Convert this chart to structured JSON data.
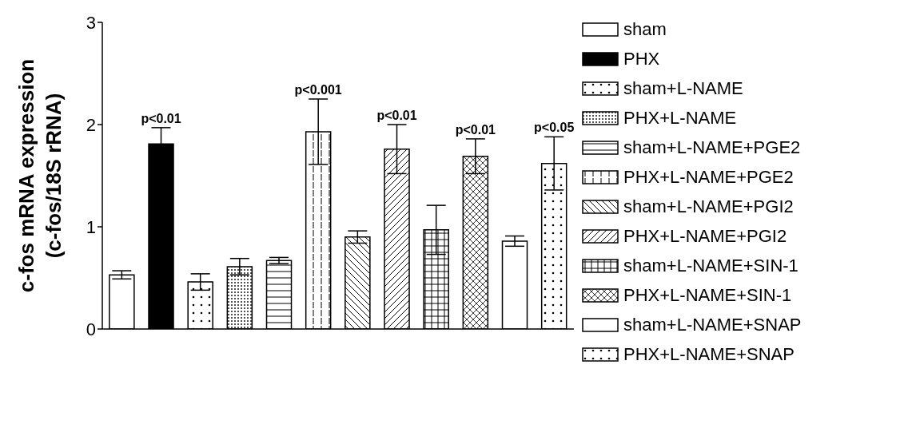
{
  "chart_data": {
    "type": "bar",
    "ylabel": "c-fos mRNA expression\n(c-fos/18S rRNA)",
    "categories": [
      null,
      null,
      null,
      null,
      null,
      null,
      null,
      null,
      null,
      null,
      null,
      null
    ],
    "series": [
      {
        "name": "sham",
        "color": "#000000",
        "values": [
          0.53,
          null,
          null,
          null,
          null,
          null,
          null,
          null,
          null,
          null,
          null,
          null
        ],
        "errors": [
          0.04,
          null,
          null,
          null,
          null,
          null,
          null,
          null,
          null,
          null,
          null,
          null
        ]
      },
      {
        "name": "PHX",
        "color": "#000000",
        "values": [
          null,
          1.81,
          null,
          null,
          null,
          null,
          null,
          null,
          null,
          null,
          null,
          null
        ],
        "errors": [
          null,
          0.16,
          null,
          null,
          null,
          null,
          null,
          null,
          null,
          null,
          null,
          null
        ],
        "value_labels": [
          null,
          "p<0.01",
          null,
          null,
          null,
          null,
          null,
          null,
          null,
          null,
          null,
          null
        ]
      },
      {
        "name": "sham+L-NAME",
        "color": "#000000",
        "values": [
          null,
          null,
          0.46,
          null,
          null,
          null,
          null,
          null,
          null,
          null,
          null,
          null
        ],
        "errors": [
          null,
          null,
          0.08,
          null,
          null,
          null,
          null,
          null,
          null,
          null,
          null,
          null
        ]
      },
      {
        "name": "PHX+L-NAME",
        "color": "#000000",
        "values": [
          null,
          null,
          null,
          0.61,
          null,
          null,
          null,
          null,
          null,
          null,
          null,
          null
        ],
        "errors": [
          null,
          null,
          null,
          0.08,
          null,
          null,
          null,
          null,
          null,
          null,
          null,
          null
        ]
      },
      {
        "name": "sham+L-NAME+PGE2",
        "color": "#000000",
        "values": [
          null,
          null,
          null,
          null,
          0.67,
          null,
          null,
          null,
          null,
          null,
          null,
          null
        ],
        "errors": [
          null,
          null,
          null,
          null,
          0.03,
          null,
          null,
          null,
          null,
          null,
          null,
          null
        ]
      },
      {
        "name": "PHX+L-NAME+PGE2",
        "color": "#000000",
        "values": [
          null,
          null,
          null,
          null,
          null,
          1.93,
          null,
          null,
          null,
          null,
          null,
          null
        ],
        "errors": [
          null,
          null,
          null,
          null,
          null,
          0.32,
          null,
          null,
          null,
          null,
          null,
          null
        ],
        "value_labels": [
          null,
          null,
          null,
          null,
          null,
          "p<0.001",
          null,
          null,
          null,
          null,
          null,
          null
        ]
      },
      {
        "name": "sham+L-NAME+PGI2",
        "color": "#000000",
        "values": [
          null,
          null,
          null,
          null,
          null,
          null,
          0.9,
          null,
          null,
          null,
          null,
          null
        ],
        "errors": [
          null,
          null,
          null,
          null,
          null,
          null,
          0.06,
          null,
          null,
          null,
          null,
          null
        ]
      },
      {
        "name": "PHX+L-NAME+PGI2",
        "color": "#000000",
        "values": [
          null,
          null,
          null,
          null,
          null,
          null,
          null,
          1.76,
          null,
          null,
          null,
          null
        ],
        "errors": [
          null,
          null,
          null,
          null,
          null,
          null,
          null,
          0.24,
          null,
          null,
          null,
          null
        ],
        "value_labels": [
          null,
          null,
          null,
          null,
          null,
          null,
          null,
          "p<0.01",
          null,
          null,
          null,
          null
        ]
      },
      {
        "name": "sham+L-NAME+SIN-1",
        "color": "#000000",
        "values": [
          null,
          null,
          null,
          null,
          null,
          null,
          null,
          null,
          0.97,
          null,
          null,
          null
        ],
        "errors": [
          null,
          null,
          null,
          null,
          null,
          null,
          null,
          null,
          0.24,
          null,
          null,
          null
        ]
      },
      {
        "name": "PHX+L-NAME+SIN-1",
        "color": "#000000",
        "values": [
          null,
          null,
          null,
          null,
          null,
          null,
          null,
          null,
          null,
          1.69,
          null,
          null
        ],
        "errors": [
          null,
          null,
          null,
          null,
          null,
          null,
          null,
          null,
          null,
          0.17,
          null,
          null
        ],
        "value_labels": [
          null,
          null,
          null,
          null,
          null,
          null,
          null,
          null,
          null,
          "p<0.01",
          null,
          null
        ]
      },
      {
        "name": "sham+L-NAME+SNAP",
        "color": "#000000",
        "values": [
          null,
          null,
          null,
          null,
          null,
          null,
          null,
          null,
          null,
          null,
          0.86,
          null
        ],
        "errors": [
          null,
          null,
          null,
          null,
          null,
          null,
          null,
          null,
          null,
          null,
          0.05,
          null
        ]
      },
      {
        "name": "PHX+L-NAME+SNAP",
        "color": "#000000",
        "values": [
          null,
          null,
          null,
          null,
          null,
          null,
          null,
          null,
          null,
          null,
          null,
          1.62
        ],
        "errors": [
          null,
          null,
          null,
          null,
          null,
          null,
          null,
          null,
          null,
          null,
          null,
          0.26
        ],
        "value_labels": [
          null,
          null,
          null,
          null,
          null,
          null,
          null,
          null,
          null,
          null,
          null,
          "p<0.05"
        ]
      }
    ],
    "ylim": [
      0,
      3
    ],
    "yticks": [
      0,
      1,
      2,
      3
    ],
    "grid": false,
    "legend": "right",
    "tick_labels": "y"
  }
}
